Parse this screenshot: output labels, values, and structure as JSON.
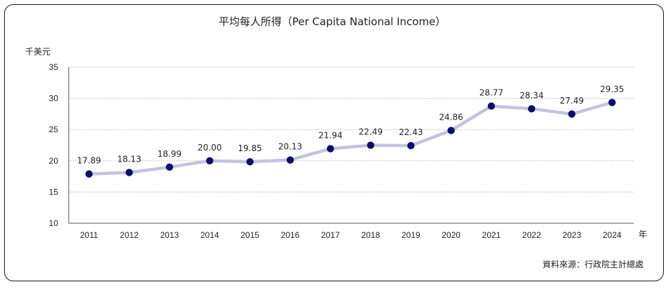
{
  "title": "平均每人所得（Per Capita National Income）",
  "source": "資料來源：行政院主計總處",
  "chart_data": {
    "type": "line",
    "title": "平均每人所得（Per Capita National Income）",
    "ylabel": "千美元",
    "xlabel": "年",
    "categories": [
      "2011",
      "2012",
      "2013",
      "2014",
      "2015",
      "2016",
      "2017",
      "2018",
      "2019",
      "2020",
      "2021",
      "2022",
      "2023",
      "2024"
    ],
    "values": [
      17.89,
      18.13,
      18.99,
      20.0,
      19.85,
      20.13,
      21.94,
      22.49,
      22.43,
      24.86,
      28.77,
      28.34,
      27.49,
      29.35
    ],
    "labels": [
      "17.89",
      "18.13",
      "18.99",
      "20.00",
      "19.85",
      "20.13",
      "21.94",
      "22.49",
      "22.43",
      "24.86",
      "28.77",
      "28.34",
      "27.49",
      "29.35"
    ],
    "ylim": [
      10,
      35
    ],
    "yticks": [
      10,
      15,
      20,
      25,
      30,
      35
    ],
    "grid": true,
    "line_color": "#c3c3e0",
    "marker_color": "#0d0d6e"
  }
}
